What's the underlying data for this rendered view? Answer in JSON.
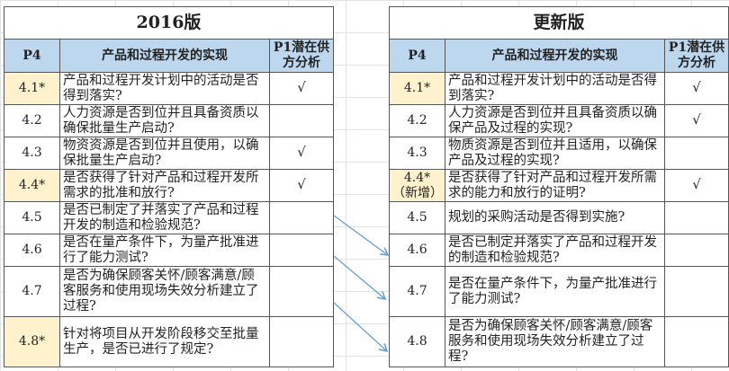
{
  "left": {
    "title": "2016版",
    "headers": [
      "P4",
      "产品和过程开发的实现",
      "P1潜在供方分析"
    ],
    "rows": [
      {
        "id": "4.1*",
        "q": "产品和过程开发计划中的活动是否得到落实?",
        "p1": "√",
        "star": true
      },
      {
        "id": "4.2",
        "q": "人力资源是否到位并且具备资质以确保批量生产启动?",
        "p1": ""
      },
      {
        "id": "4.3",
        "q": "物资资源是否到位并且使用，以确保批量生产启动?",
        "p1": "√"
      },
      {
        "id": "4.4*",
        "q": "是否获得了针对产品和过程开发所需求的批准和放行?",
        "p1": "√",
        "star": true
      },
      {
        "id": "4.5",
        "q": "是否已制定了并落实了产品和过程开发的制造和检验规范?",
        "p1": ""
      },
      {
        "id": "4.6",
        "q": "是否在量产条件下，为量产批准进行了能力测试?",
        "p1": ""
      },
      {
        "id": "4.7",
        "q": "是否为确保顾客关怀/顾客满意/顾客服务和使用现场失效分析建立了过程?",
        "p1": ""
      },
      {
        "id": "4.8*",
        "q": "针对将项目从开发阶段移交至批量生产，是否已进行了规定?",
        "p1": "",
        "star": true
      }
    ]
  },
  "right": {
    "title": "更新版",
    "headers": [
      "P4",
      "产品和过程开发的实现",
      "P1潜在供方分析"
    ],
    "rows": [
      {
        "id": "4.1*",
        "q": "产品和过程开发计划中的活动是否得到落实?",
        "p1": "√",
        "star": true
      },
      {
        "id": "4.2",
        "q": "人力资源是否到位并且具备资质以确保产品及过程的实现?",
        "p1": "√"
      },
      {
        "id": "4.3",
        "q": "物质资源是否到位并且适用，以确保产品及过程的实现?",
        "p1": ""
      },
      {
        "id": "4.4*（新增）",
        "q": "是否获得了针对产品和过程开发所需求的能力和放行的证明?",
        "p1": "√",
        "star": true
      },
      {
        "id": "4.5",
        "q": "规划的采购活动是否得到实施?",
        "p1": ""
      },
      {
        "id": "4.6",
        "q": "是否已制定并落实了产品和过程开发的制造和检验规范?",
        "p1": ""
      },
      {
        "id": "4.7",
        "q": "是否在量产条件下，为量产批准进行了能力测试?",
        "p1": ""
      },
      {
        "id": "4.8",
        "q": "是否为确保顾客关怀/顾客满意/顾客服务和使用现场失效分析建立了过程?",
        "p1": ""
      }
    ]
  },
  "colors": {
    "header": "#bdd7ee",
    "highlight": "#fff2cc",
    "arrow": "#5b9bd5"
  }
}
